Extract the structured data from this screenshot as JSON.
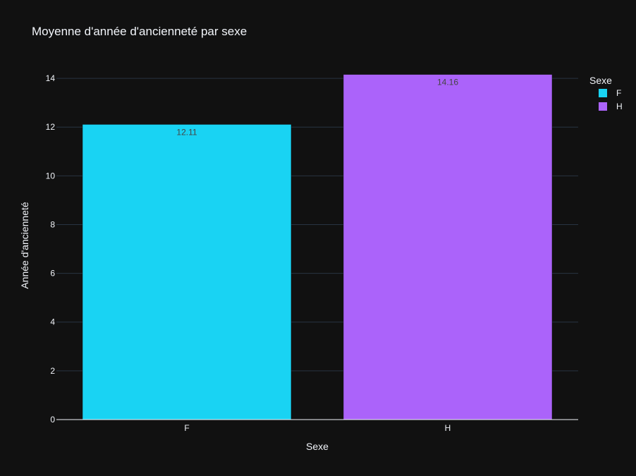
{
  "chart_data": {
    "type": "bar",
    "title": "Moyenne d'année d'ancienneté par sexe",
    "xlabel": "Sexe",
    "ylabel": "Année d'ancienneté",
    "categories": [
      "F",
      "H"
    ],
    "values": [
      12.11,
      14.16
    ],
    "data_labels": [
      "12.11",
      "14.16"
    ],
    "colors": [
      "#19d3f3",
      "#ab63fa"
    ],
    "ylim": [
      0,
      14.9
    ],
    "yticks": [
      0,
      2,
      4,
      6,
      8,
      10,
      12,
      14
    ],
    "grid": true,
    "legend": {
      "title": "Sexe",
      "placement": "top-right",
      "entries": [
        "F",
        "H"
      ]
    }
  }
}
